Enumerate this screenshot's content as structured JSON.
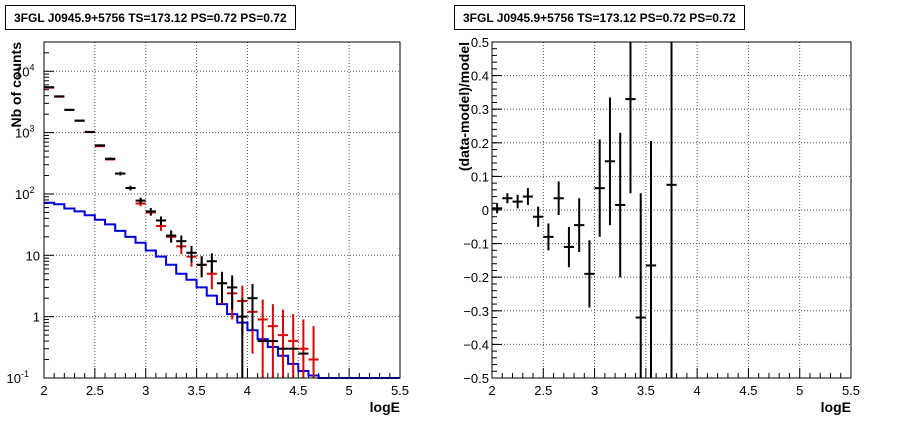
{
  "colors": {
    "data": "#000000",
    "model_counts": "#dd0000",
    "model_curve": "#0000dd",
    "grid": "#555555"
  },
  "chart_data": [
    {
      "type": "histogram",
      "title": "3FGL J0945.9+5756 TS=173.12 PS=0.72 PS=0.72",
      "xlabel": "logE",
      "ylabel": "Nb of counts",
      "xlim": [
        2,
        5.5
      ],
      "ylim": [
        0.1,
        30000
      ],
      "ylog": true,
      "grid": true,
      "xticks": [
        "2",
        "2.5",
        "3",
        "3.5",
        "4",
        "4.5",
        "5",
        "5.5"
      ],
      "yticks": [
        "10^-1",
        "1",
        "10",
        "10^2",
        "10^3",
        "10^4"
      ],
      "series": [
        {
          "style": "errorbar",
          "color": "black",
          "x": [
            2.05,
            2.15,
            2.25,
            2.35,
            2.45,
            2.55,
            2.65,
            2.75,
            2.85,
            2.95,
            3.05,
            3.15,
            3.25,
            3.35,
            3.45,
            3.55,
            3.65,
            3.75,
            3.85,
            3.95,
            4.05,
            4.15,
            4.25,
            4.35,
            4.45,
            4.55
          ],
          "y": [
            5500,
            3900,
            2350,
            1570,
            1020,
            620,
            375,
            215,
            125,
            78,
            52,
            37,
            21,
            17,
            11,
            7,
            8,
            3.5,
            3,
            1,
            2,
            0.4,
            0.4,
            0.3,
            0.3,
            0.25
          ],
          "yerr_lo": [
            75,
            62,
            48,
            40,
            32,
            25,
            19,
            15,
            11,
            9,
            7,
            6,
            4.5,
            4,
            3.2,
            2.6,
            2.8,
            1.8,
            1.7,
            1,
            1.4,
            0,
            0,
            0,
            0,
            0
          ],
          "yerr_hi": [
            75,
            62,
            48,
            40,
            32,
            25,
            19,
            15,
            11,
            9,
            7,
            6,
            4.5,
            4,
            3.2,
            2.6,
            2.8,
            1.8,
            1.7,
            1,
            1.4,
            0,
            0,
            0,
            0,
            0
          ]
        },
        {
          "style": "errorbar",
          "color": "red",
          "x": [
            2.05,
            2.15,
            2.25,
            2.35,
            2.45,
            2.55,
            2.65,
            2.75,
            2.85,
            2.95,
            3.05,
            3.15,
            3.25,
            3.35,
            3.45,
            3.55,
            3.65,
            3.75,
            3.85,
            3.95,
            4.05,
            4.15,
            4.25,
            4.35,
            4.45,
            4.55,
            4.65
          ],
          "y": [
            5400,
            3850,
            2350,
            1560,
            1030,
            600,
            365,
            215,
            125,
            70,
            50,
            30,
            20,
            14,
            9.5,
            7,
            5,
            3.5,
            2.4,
            1.8,
            1.2,
            0.9,
            0.7,
            0.5,
            0.4,
            0.3,
            0.2
          ],
          "yerr_lo": [
            0,
            0,
            0,
            0,
            0,
            0,
            0,
            0,
            0,
            7,
            6,
            5,
            4,
            3.5,
            3,
            2.6,
            2.2,
            1.9,
            1.5,
            1.3,
            0.95,
            0.8,
            0.6,
            0.42,
            0.32,
            0.22,
            0.12
          ],
          "yerr_hi": [
            0,
            0,
            0,
            0,
            0,
            0,
            0,
            0,
            0,
            7,
            6,
            5,
            4,
            3.8,
            3.2,
            2.7,
            2.3,
            1.9,
            1.6,
            1.4,
            1.1,
            1,
            0.9,
            0.8,
            0.7,
            0.6,
            0.5
          ]
        },
        {
          "style": "step",
          "color": "blue",
          "x_edges": [
            2.0,
            2.1,
            2.2,
            2.3,
            2.4,
            2.5,
            2.6,
            2.7,
            2.8,
            2.9,
            3.0,
            3.1,
            3.2,
            3.3,
            3.4,
            3.5,
            3.6,
            3.7,
            3.8,
            3.9,
            4.0,
            4.1,
            4.2,
            4.3,
            4.4,
            4.5,
            4.6,
            4.7,
            5.5
          ],
          "y": [
            72,
            68,
            58,
            52,
            45,
            38,
            32,
            25,
            20,
            16,
            12,
            9.5,
            7,
            5,
            4,
            3,
            2.2,
            1.6,
            1.1,
            0.8,
            0.6,
            0.43,
            0.32,
            0.23,
            0.17,
            0.13,
            0.11,
            0.1
          ]
        }
      ]
    },
    {
      "type": "errorbar",
      "title": "3FGL J0945.9+5756 TS=173.12 PS=0.72 PS=0.72",
      "xlabel": "logE",
      "ylabel": "(data-model)/model",
      "xlim": [
        2,
        5.5
      ],
      "ylim": [
        -0.5,
        0.5
      ],
      "grid": true,
      "xticks": [
        "2",
        "2.5",
        "3",
        "3.5",
        "4",
        "4.5",
        "5",
        "5.5"
      ],
      "yticks": [
        "−0.5",
        "−0.4",
        "−0.3",
        "−0.2",
        "−0.1",
        "0",
        "0.1",
        "0.2",
        "0.3",
        "0.4",
        "0.5"
      ],
      "series": [
        {
          "color": "black",
          "x": [
            2.05,
            2.15,
            2.25,
            2.35,
            2.45,
            2.55,
            2.65,
            2.75,
            2.85,
            2.95,
            3.05,
            3.15,
            3.25,
            3.35,
            3.45,
            3.55,
            3.75
          ],
          "y": [
            0.005,
            0.035,
            0.025,
            0.04,
            -0.02,
            -0.08,
            0.035,
            -0.11,
            -0.045,
            -0.19,
            0.065,
            0.145,
            0.015,
            0.33,
            -0.32,
            -0.165,
            0.075
          ],
          "yerr": [
            0.015,
            0.015,
            0.02,
            0.025,
            0.03,
            0.04,
            0.05,
            0.06,
            0.08,
            0.1,
            0.145,
            0.19,
            0.215,
            0.28,
            0.37,
            0.37,
            0.58
          ]
        }
      ]
    }
  ]
}
